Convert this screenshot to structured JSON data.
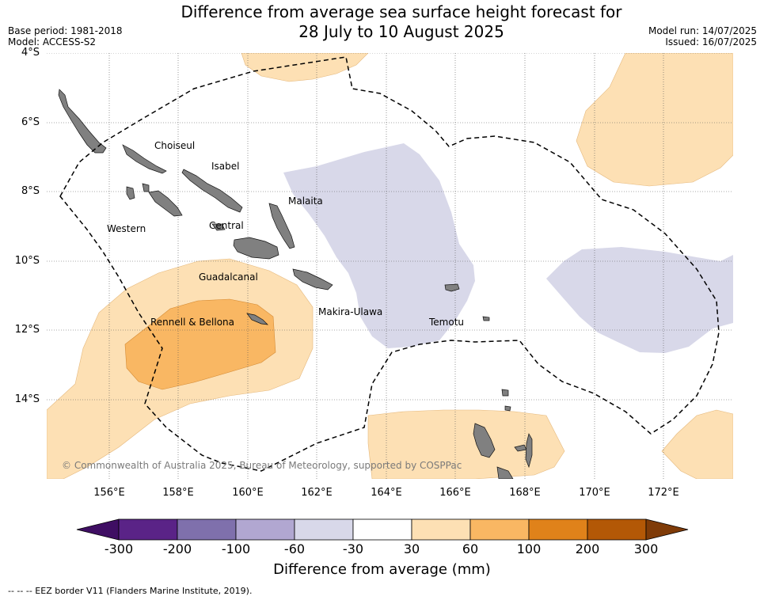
{
  "header": {
    "title_line1": "Difference from average sea surface height forecast for",
    "title_line2": "28 July to 10 August 2025",
    "base_period": "Base period: 1981-2018",
    "model": "Model: ACCESS-S2",
    "model_run": "Model run: 14/07/2025",
    "issued": "Issued: 16/07/2025"
  },
  "map": {
    "lat_labels": [
      "4°S",
      "6°S",
      "8°S",
      "10°S",
      "12°S",
      "14°S"
    ],
    "lon_labels": [
      "156°E",
      "158°E",
      "160°E",
      "162°E",
      "164°E",
      "166°E",
      "168°E",
      "170°E",
      "172°E"
    ],
    "places": {
      "choiseul": "Choiseul",
      "isabel": "Isabel",
      "malaita": "Malaita",
      "western": "Western",
      "central": "Central",
      "guadalcanal": "Guadalcanal",
      "makira": "Makira-Ulawa",
      "rennell": "Rennell & Bellona",
      "temotu": "Temotu"
    },
    "copyright": "© Commonwealth of Australia 2025, Bureau of Meteorology, supported by COSPPac",
    "colors": {
      "land": "#808080",
      "pos_30_60": "#fde0b4",
      "pos_60_100": "#f9b763",
      "neg_30_60": "#d8d8e9"
    }
  },
  "colorbar": {
    "title": "Difference from average (mm)",
    "ticks": [
      "-300",
      "-200",
      "-100",
      "-60",
      "-30",
      "30",
      "60",
      "100",
      "200",
      "300"
    ],
    "colors": [
      "#3f0e63",
      "#5a2387",
      "#7f70ac",
      "#b1a7d1",
      "#d8d8e9",
      "#ffffff",
      "#fde0b4",
      "#f9b763",
      "#e0821a",
      "#b35806",
      "#7f3b08"
    ]
  },
  "footer": {
    "eez_note": "--  --  -- EEZ border V11 (Flanders Marine Institute, 2019)."
  }
}
